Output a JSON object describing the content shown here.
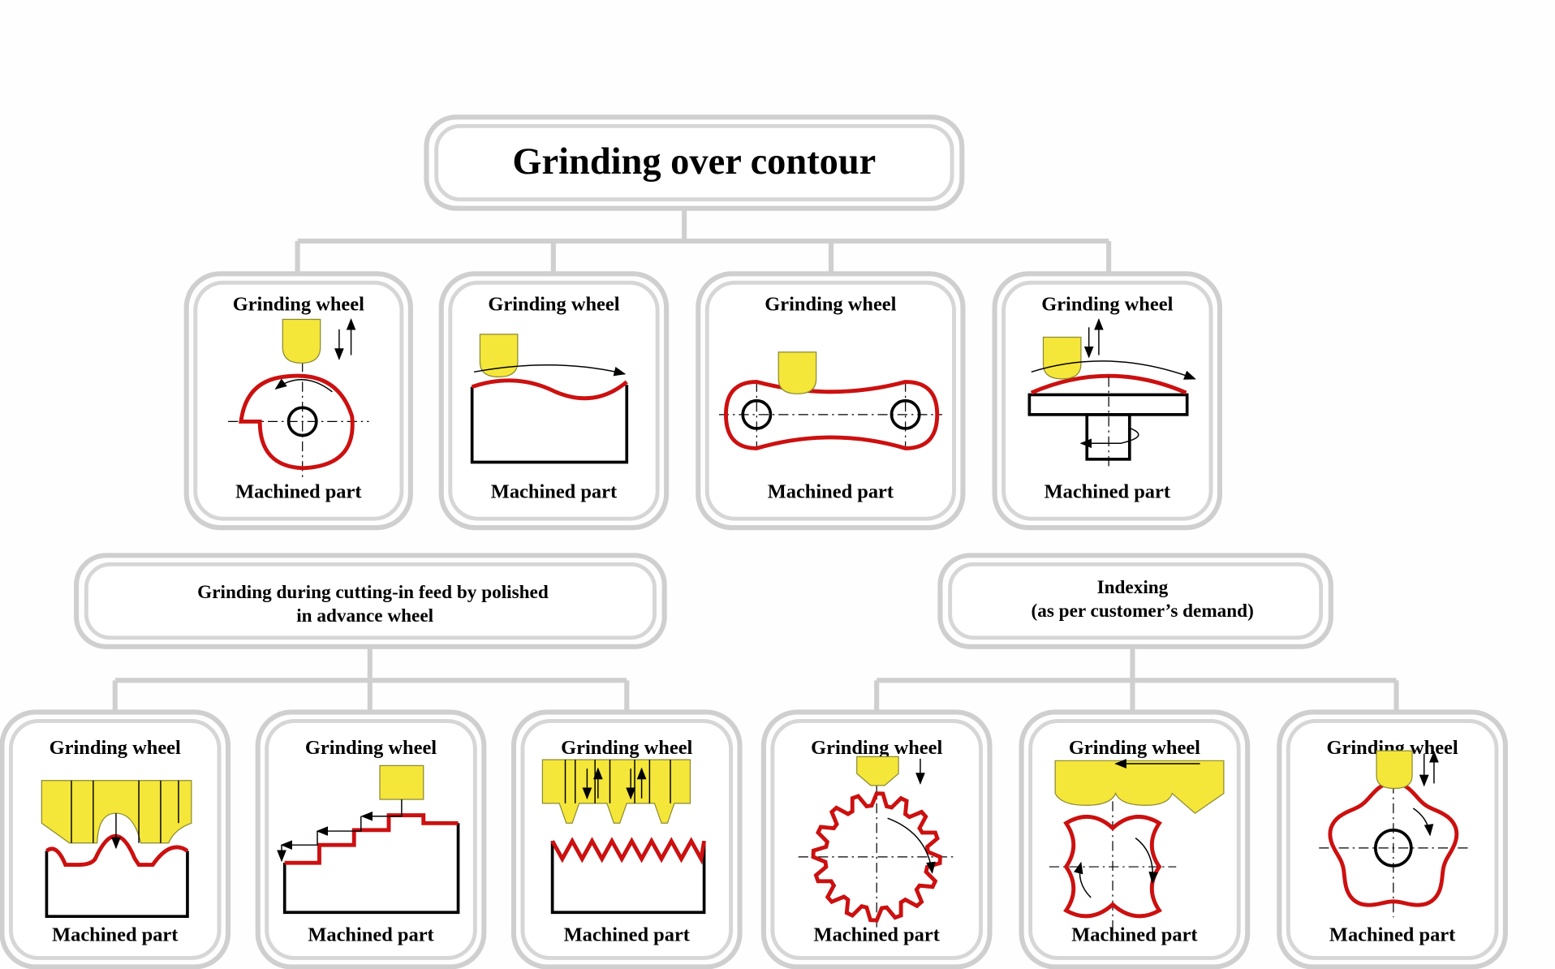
{
  "title": "Grinding over contour",
  "row1": [
    {
      "top": "Grinding wheel",
      "bottom": "Machined part"
    },
    {
      "top": "Grinding wheel",
      "bottom": "Machined part"
    },
    {
      "top": "Grinding wheel",
      "bottom": "Machined part"
    },
    {
      "top": "Grinding wheel",
      "bottom": "Machined part"
    }
  ],
  "groups": [
    {
      "line1": "Grinding during cutting-in feed by polished",
      "line2": "in advance wheel"
    },
    {
      "line1": "Indexing",
      "line2": "(as per customer’s demand)"
    }
  ],
  "row2": [
    {
      "top": "Grinding wheel",
      "bottom": "Machined part"
    },
    {
      "top": "Grinding wheel",
      "bottom": "Machined part"
    },
    {
      "top": "Grinding wheel",
      "bottom": "Machined part"
    },
    {
      "top": "Grinding wheel",
      "bottom": "Machined part"
    },
    {
      "top": "Grinding wheel",
      "bottom": "Machined part"
    },
    {
      "top": "Grinding wheel",
      "bottom": "Machined part"
    }
  ],
  "colors": {
    "wheel": "#f5e63a",
    "contour": "#cc1010",
    "frame": "#cfcfcf"
  }
}
